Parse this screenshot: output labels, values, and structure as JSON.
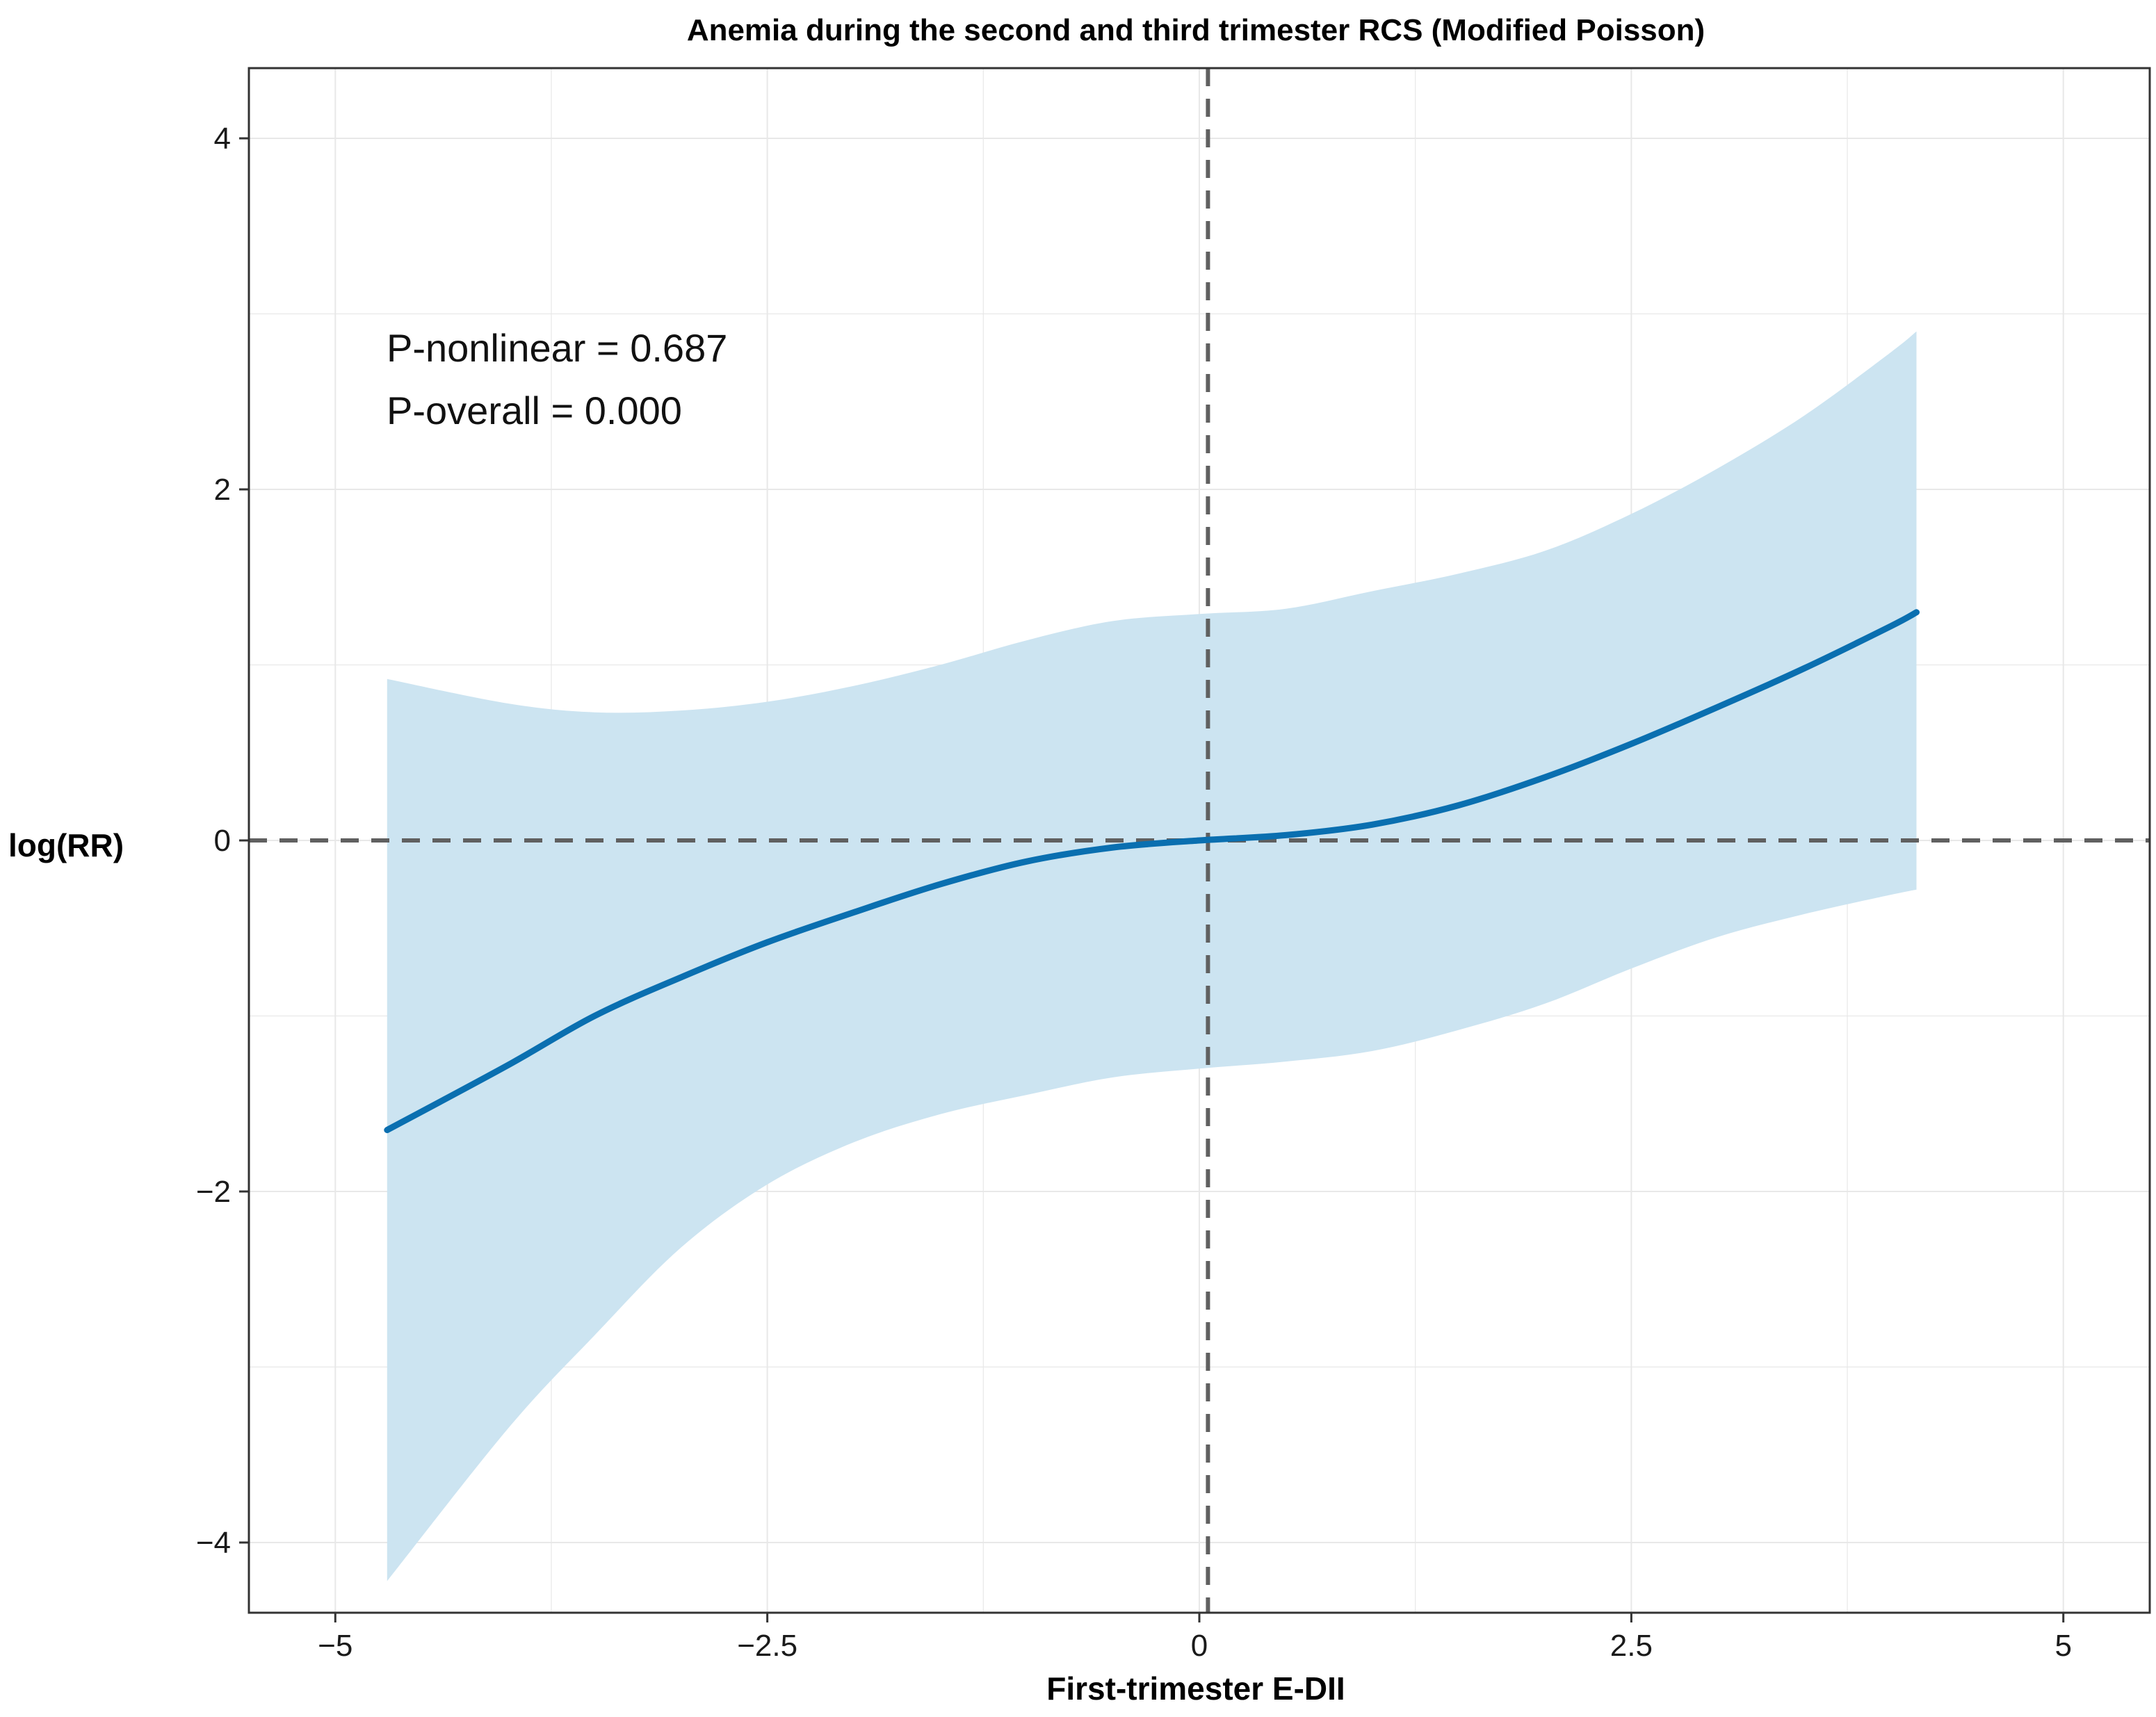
{
  "chart_data": {
    "type": "line",
    "title": "Anemia during the second and third trimester RCS (Modified Poisson)",
    "xlabel": "First-trimester E-DII",
    "ylabel": "log(RR)",
    "xlim": [
      -5.5,
      5.5
    ],
    "ylim": [
      -4.4,
      4.4
    ],
    "x_ticks": [
      -5,
      -2.5,
      0,
      2.5,
      5
    ],
    "x_tick_labels": [
      "−5",
      "−2.5",
      "0",
      "2.5",
      "5"
    ],
    "y_ticks": [
      -4,
      -2,
      0,
      2,
      4
    ],
    "y_tick_labels": [
      "−4",
      "−2",
      "0",
      "2",
      "4"
    ],
    "grid": true,
    "reference_lines": {
      "vertical_x": 0.05,
      "horizontal_y": 0
    },
    "annotations": {
      "p_nonlinear": "P-nonlinear = 0.687",
      "p_overall": "P-overall = 0.000"
    },
    "series": [
      {
        "name": "log(RR) estimate",
        "x": [
          -4.7,
          -4.0,
          -3.5,
          -3.0,
          -2.5,
          -2.0,
          -1.5,
          -1.0,
          -0.5,
          0.0,
          0.5,
          1.0,
          1.5,
          2.0,
          2.5,
          3.0,
          3.5,
          4.0,
          4.15
        ],
        "y": [
          -1.65,
          -1.28,
          -1.0,
          -0.78,
          -0.58,
          -0.41,
          -0.25,
          -0.12,
          -0.04,
          0.0,
          0.03,
          0.09,
          0.2,
          0.36,
          0.55,
          0.76,
          0.98,
          1.22,
          1.3
        ],
        "lower": [
          -4.22,
          -3.35,
          -2.82,
          -2.32,
          -1.96,
          -1.72,
          -1.56,
          -1.45,
          -1.35,
          -1.3,
          -1.26,
          -1.2,
          -1.08,
          -0.93,
          -0.73,
          -0.55,
          -0.42,
          -0.31,
          -0.28
        ],
        "upper": [
          0.92,
          0.78,
          0.73,
          0.74,
          0.79,
          0.88,
          1.0,
          1.14,
          1.25,
          1.29,
          1.32,
          1.42,
          1.52,
          1.65,
          1.86,
          2.12,
          2.42,
          2.78,
          2.9
        ],
        "line_color": "#0a6fb0",
        "band_color": "#cce4f1"
      }
    ]
  },
  "colors": {
    "grid": "#e8e8e8",
    "reference": "#606060",
    "frame": "#333333"
  }
}
